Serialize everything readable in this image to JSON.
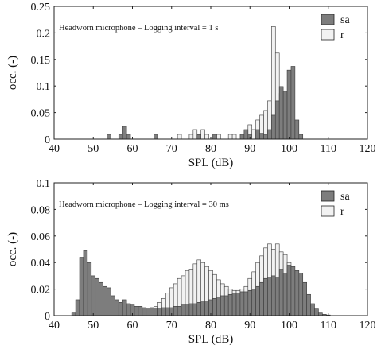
{
  "chart_data": [
    {
      "type": "bar",
      "subtype": "overlapping-histogram",
      "annotation": "Headworn microphone – Logging interval = 1 s",
      "xlabel": "SPL (dB)",
      "ylabel": "occ. (-)",
      "xlim": [
        40,
        120
      ],
      "ylim": [
        0,
        0.25
      ],
      "x_ticks": [
        "40",
        "50",
        "60",
        "70",
        "80",
        "90",
        "100",
        "110",
        "120"
      ],
      "y_ticks": [
        "0",
        "0.05",
        "0.1",
        "0.15",
        "0.2",
        "0.25"
      ],
      "bin_width": 1,
      "legend_position": "top-right",
      "grid": false,
      "series": [
        {
          "name": "sa",
          "color": "#7d7d7d",
          "bins": [
            {
              "x": 54,
              "y": 0.009
            },
            {
              "x": 57,
              "y": 0.009
            },
            {
              "x": 58,
              "y": 0.024
            },
            {
              "x": 59,
              "y": 0.009
            },
            {
              "x": 66,
              "y": 0.009
            },
            {
              "x": 77,
              "y": 0.008
            },
            {
              "x": 81,
              "y": 0.009
            },
            {
              "x": 88,
              "y": 0.009
            },
            {
              "x": 89,
              "y": 0.018
            },
            {
              "x": 90,
              "y": 0.009
            },
            {
              "x": 92,
              "y": 0.018
            },
            {
              "x": 93,
              "y": 0.011
            },
            {
              "x": 94,
              "y": 0.009
            },
            {
              "x": 95,
              "y": 0.018
            },
            {
              "x": 96,
              "y": 0.045
            },
            {
              "x": 97,
              "y": 0.072
            },
            {
              "x": 98,
              "y": 0.099
            },
            {
              "x": 99,
              "y": 0.09
            },
            {
              "x": 100,
              "y": 0.13
            },
            {
              "x": 101,
              "y": 0.137
            },
            {
              "x": 102,
              "y": 0.036
            },
            {
              "x": 103,
              "y": 0.009
            }
          ]
        },
        {
          "name": "r",
          "color": "#f2f2f2",
          "bins": [
            {
              "x": 72,
              "y": 0.009
            },
            {
              "x": 75,
              "y": 0.009
            },
            {
              "x": 76,
              "y": 0.018
            },
            {
              "x": 77,
              "y": 0.009
            },
            {
              "x": 78,
              "y": 0.018
            },
            {
              "x": 79,
              "y": 0.009
            },
            {
              "x": 82,
              "y": 0.009
            },
            {
              "x": 85,
              "y": 0.009
            },
            {
              "x": 86,
              "y": 0.009
            },
            {
              "x": 89,
              "y": 0.009
            },
            {
              "x": 90,
              "y": 0.027
            },
            {
              "x": 91,
              "y": 0.018
            },
            {
              "x": 92,
              "y": 0.036
            },
            {
              "x": 93,
              "y": 0.045
            },
            {
              "x": 94,
              "y": 0.054
            },
            {
              "x": 95,
              "y": 0.072
            },
            {
              "x": 96,
              "y": 0.212
            },
            {
              "x": 97,
              "y": 0.162
            },
            {
              "x": 98,
              "y": 0.086
            },
            {
              "x": 99,
              "y": 0.054
            },
            {
              "x": 100,
              "y": 0.036
            },
            {
              "x": 101,
              "y": 0.009
            }
          ]
        }
      ]
    },
    {
      "type": "bar",
      "subtype": "overlapping-histogram",
      "annotation": "Headworn microphone – Logging interval = 30 ms",
      "xlabel": "SPL (dB)",
      "ylabel": "occ. (-)",
      "xlim": [
        40,
        120
      ],
      "ylim": [
        0,
        0.1
      ],
      "x_ticks": [
        "40",
        "50",
        "60",
        "70",
        "80",
        "90",
        "100",
        "110",
        "120"
      ],
      "y_ticks": [
        "0",
        "0.02",
        "0.04",
        "0.06",
        "0.08",
        "0.1"
      ],
      "bin_width": 1,
      "legend_position": "top-right",
      "grid": false,
      "series": [
        {
          "name": "sa",
          "color": "#7d7d7d",
          "bins": [
            {
              "x": 45,
              "y": 0.002
            },
            {
              "x": 46,
              "y": 0.012
            },
            {
              "x": 47,
              "y": 0.044
            },
            {
              "x": 48,
              "y": 0.049
            },
            {
              "x": 49,
              "y": 0.04
            },
            {
              "x": 50,
              "y": 0.03
            },
            {
              "x": 51,
              "y": 0.028
            },
            {
              "x": 52,
              "y": 0.025
            },
            {
              "x": 53,
              "y": 0.022
            },
            {
              "x": 54,
              "y": 0.021
            },
            {
              "x": 55,
              "y": 0.015
            },
            {
              "x": 56,
              "y": 0.012
            },
            {
              "x": 57,
              "y": 0.01
            },
            {
              "x": 58,
              "y": 0.012
            },
            {
              "x": 59,
              "y": 0.009
            },
            {
              "x": 60,
              "y": 0.008
            },
            {
              "x": 61,
              "y": 0.007
            },
            {
              "x": 62,
              "y": 0.007
            },
            {
              "x": 63,
              "y": 0.006
            },
            {
              "x": 64,
              "y": 0.005
            },
            {
              "x": 65,
              "y": 0.006
            },
            {
              "x": 66,
              "y": 0.005
            },
            {
              "x": 67,
              "y": 0.005
            },
            {
              "x": 68,
              "y": 0.006
            },
            {
              "x": 69,
              "y": 0.006
            },
            {
              "x": 70,
              "y": 0.006
            },
            {
              "x": 71,
              "y": 0.007
            },
            {
              "x": 72,
              "y": 0.007
            },
            {
              "x": 73,
              "y": 0.008
            },
            {
              "x": 74,
              "y": 0.008
            },
            {
              "x": 75,
              "y": 0.009
            },
            {
              "x": 76,
              "y": 0.009
            },
            {
              "x": 77,
              "y": 0.01
            },
            {
              "x": 78,
              "y": 0.011
            },
            {
              "x": 79,
              "y": 0.011
            },
            {
              "x": 80,
              "y": 0.012
            },
            {
              "x": 81,
              "y": 0.013
            },
            {
              "x": 82,
              "y": 0.014
            },
            {
              "x": 83,
              "y": 0.015
            },
            {
              "x": 84,
              "y": 0.015
            },
            {
              "x": 85,
              "y": 0.016
            },
            {
              "x": 86,
              "y": 0.017
            },
            {
              "x": 87,
              "y": 0.017
            },
            {
              "x": 88,
              "y": 0.018
            },
            {
              "x": 89,
              "y": 0.018
            },
            {
              "x": 90,
              "y": 0.019
            },
            {
              "x": 91,
              "y": 0.02
            },
            {
              "x": 92,
              "y": 0.022
            },
            {
              "x": 93,
              "y": 0.025
            },
            {
              "x": 94,
              "y": 0.028
            },
            {
              "x": 95,
              "y": 0.029
            },
            {
              "x": 96,
              "y": 0.03
            },
            {
              "x": 97,
              "y": 0.029
            },
            {
              "x": 98,
              "y": 0.035
            },
            {
              "x": 99,
              "y": 0.032
            },
            {
              "x": 100,
              "y": 0.038
            },
            {
              "x": 101,
              "y": 0.037
            },
            {
              "x": 102,
              "y": 0.034
            },
            {
              "x": 103,
              "y": 0.032
            },
            {
              "x": 104,
              "y": 0.025
            },
            {
              "x": 105,
              "y": 0.016
            },
            {
              "x": 106,
              "y": 0.009
            },
            {
              "x": 107,
              "y": 0.005
            },
            {
              "x": 108,
              "y": 0.002
            },
            {
              "x": 109,
              "y": 0.001
            },
            {
              "x": 110,
              "y": 0.0005
            }
          ]
        },
        {
          "name": "r",
          "color": "#f2f2f2",
          "bins": [
            {
              "x": 63,
              "y": 0.002
            },
            {
              "x": 64,
              "y": 0.003
            },
            {
              "x": 65,
              "y": 0.005
            },
            {
              "x": 66,
              "y": 0.007
            },
            {
              "x": 67,
              "y": 0.01
            },
            {
              "x": 68,
              "y": 0.013
            },
            {
              "x": 69,
              "y": 0.017
            },
            {
              "x": 70,
              "y": 0.021
            },
            {
              "x": 71,
              "y": 0.024
            },
            {
              "x": 72,
              "y": 0.028
            },
            {
              "x": 73,
              "y": 0.03
            },
            {
              "x": 74,
              "y": 0.034
            },
            {
              "x": 75,
              "y": 0.035
            },
            {
              "x": 76,
              "y": 0.039
            },
            {
              "x": 77,
              "y": 0.042
            },
            {
              "x": 78,
              "y": 0.04
            },
            {
              "x": 79,
              "y": 0.037
            },
            {
              "x": 80,
              "y": 0.034
            },
            {
              "x": 81,
              "y": 0.031
            },
            {
              "x": 82,
              "y": 0.027
            },
            {
              "x": 83,
              "y": 0.024
            },
            {
              "x": 84,
              "y": 0.022
            },
            {
              "x": 85,
              "y": 0.02
            },
            {
              "x": 86,
              "y": 0.019
            },
            {
              "x": 87,
              "y": 0.019
            },
            {
              "x": 88,
              "y": 0.02
            },
            {
              "x": 89,
              "y": 0.022
            },
            {
              "x": 90,
              "y": 0.028
            },
            {
              "x": 91,
              "y": 0.033
            },
            {
              "x": 92,
              "y": 0.04
            },
            {
              "x": 93,
              "y": 0.045
            },
            {
              "x": 94,
              "y": 0.051
            },
            {
              "x": 95,
              "y": 0.054
            },
            {
              "x": 96,
              "y": 0.05
            },
            {
              "x": 97,
              "y": 0.054
            },
            {
              "x": 98,
              "y": 0.048
            },
            {
              "x": 99,
              "y": 0.046
            },
            {
              "x": 100,
              "y": 0.04
            },
            {
              "x": 101,
              "y": 0.034
            },
            {
              "x": 102,
              "y": 0.028
            },
            {
              "x": 103,
              "y": 0.021
            },
            {
              "x": 104,
              "y": 0.014
            },
            {
              "x": 105,
              "y": 0.008
            },
            {
              "x": 106,
              "y": 0.005
            },
            {
              "x": 107,
              "y": 0.002
            },
            {
              "x": 108,
              "y": 0.001
            }
          ]
        }
      ]
    }
  ]
}
